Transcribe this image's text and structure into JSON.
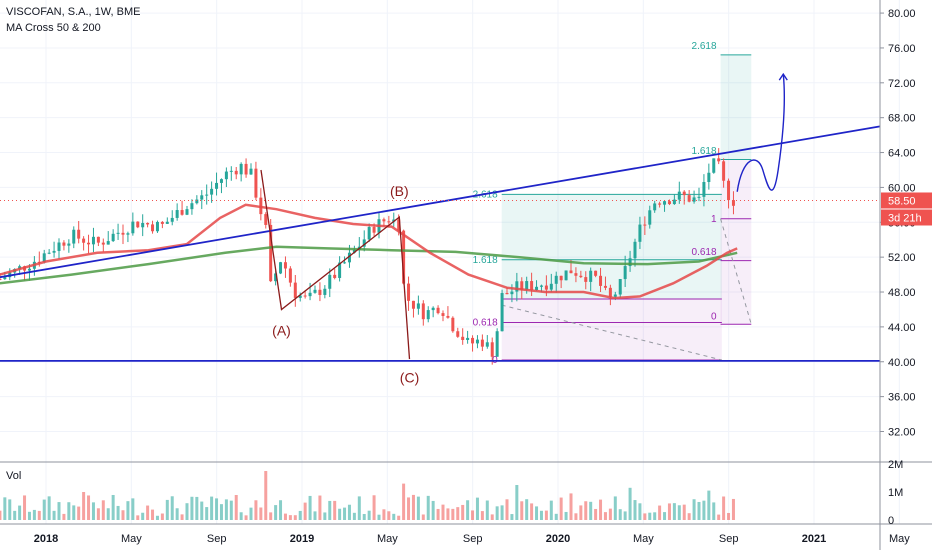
{
  "header": {
    "symbol_line": "VISCOFAN, S.A., 1W, BME",
    "indicator_line": "MA Cross 50 & 200"
  },
  "volume_pane": {
    "label": "Vol"
  },
  "colors": {
    "up": "#26a69a",
    "down": "#ef5350",
    "ma50": "#e54848",
    "ma200": "#4c9a44",
    "trendline": "#1f24c8",
    "fib_teal": "#26a69a",
    "fib_purple": "#9c27b0",
    "wave_label": "#8b1a1a",
    "price_badge": "#ef5350"
  },
  "chart_data": {
    "type": "candlestick",
    "x_axis": {
      "ticks": [
        "2018",
        "May",
        "Sep",
        "2019",
        "May",
        "Sep",
        "2020",
        "May",
        "Sep",
        "2021",
        "May"
      ]
    },
    "y_axis": {
      "ticks": [
        "80.00",
        "76.00",
        "72.00",
        "68.00",
        "64.00",
        "60.00",
        "56.00",
        "52.00",
        "48.00",
        "44.00",
        "40.00",
        "36.00",
        "32.00"
      ],
      "range": [
        28.5,
        81.5
      ]
    },
    "volume_axis": {
      "ticks": [
        "2M",
        "1M",
        "0"
      ]
    },
    "current_price": "58.50",
    "countdown": "3d 21h",
    "series": [
      {
        "type": "ma",
        "name": "MA 50"
      },
      {
        "type": "ma",
        "name": "MA 200"
      }
    ],
    "fib_labels_left": [
      "2.618",
      "1.618",
      "0.618",
      "0"
    ],
    "fib_labels_right": [
      "2.618",
      "1.618",
      "1",
      "0.618",
      "0"
    ],
    "wave_labels": [
      "(A)",
      "(B)",
      "(C)"
    ],
    "horizontal_support": 40.1
  }
}
